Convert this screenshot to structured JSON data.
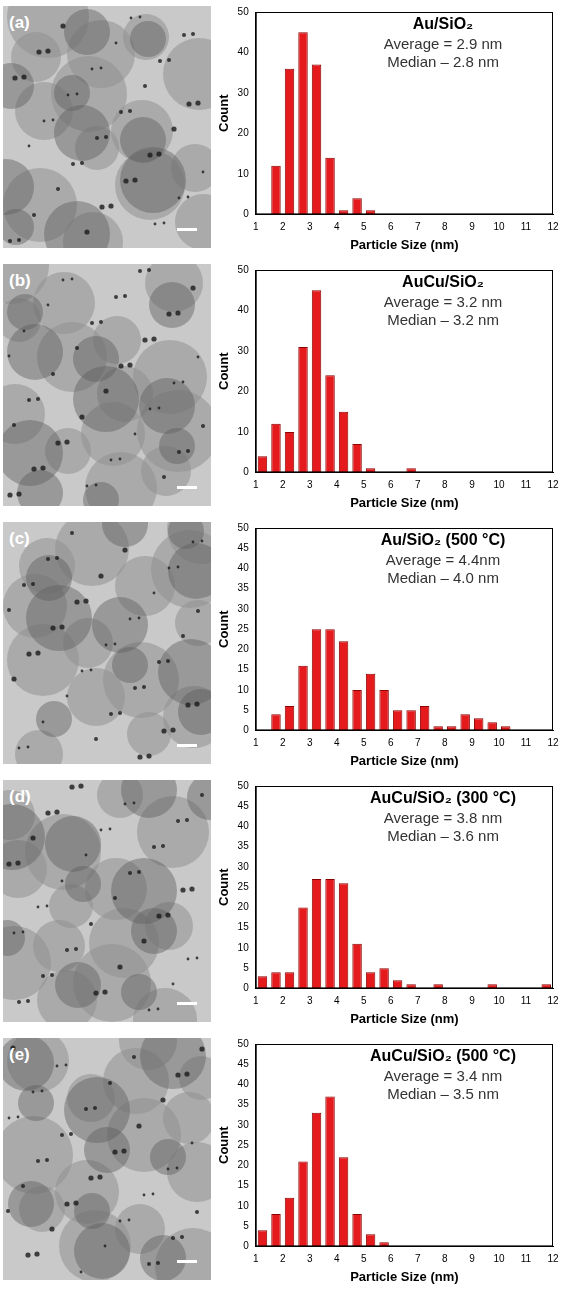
{
  "chart_data": [
    {
      "type": "histogram",
      "panel_label": "(a)",
      "title": "Au/SiO₂",
      "annotations": [
        "Average = 2.9 nm",
        "Median – 2.8 nm"
      ],
      "x_label": "Particle Size (nm)",
      "y_label": "Count",
      "bins": [
        1.5,
        2.0,
        2.5,
        3.0,
        3.5,
        4.0,
        4.5,
        5.0,
        5.5
      ],
      "values": [
        12,
        36,
        45,
        37,
        14,
        1,
        4,
        1
      ],
      "color": "#e41a1c",
      "xlim": [
        1,
        12
      ],
      "xticks": [
        1,
        2,
        3,
        4,
        5,
        6,
        7,
        8,
        9,
        10,
        11,
        12
      ],
      "ylim": [
        0,
        50
      ],
      "yticks": [
        0,
        10,
        20,
        30,
        40,
        50
      ],
      "grid": false
    },
    {
      "type": "histogram",
      "panel_label": "(b)",
      "title": "AuCu/SiO₂",
      "annotations": [
        "Average = 3.2 nm",
        "Median – 3.2 nm"
      ],
      "x_label": "Particle Size (nm)",
      "y_label": "Count",
      "bins": [
        1.0,
        1.5,
        2.0,
        2.5,
        3.0,
        3.5,
        4.0,
        4.5,
        5.0,
        5.5,
        6.0,
        6.5,
        7.0
      ],
      "values": [
        4,
        12,
        10,
        31,
        45,
        24,
        15,
        7,
        1,
        0,
        0,
        1
      ],
      "color": "#e41a1c",
      "xlim": [
        1,
        12
      ],
      "xticks": [
        1,
        2,
        3,
        4,
        5,
        6,
        7,
        8,
        9,
        10,
        11,
        12
      ],
      "ylim": [
        0,
        50
      ],
      "yticks": [
        0,
        10,
        20,
        30,
        40,
        50
      ],
      "grid": false
    },
    {
      "type": "histogram",
      "panel_label": "(c)",
      "title": "Au/SiO₂ (500 °C)",
      "annotations": [
        "Average = 4.4nm",
        "Median – 4.0 nm"
      ],
      "x_label": "Particle Size (nm)",
      "y_label": "Count",
      "bins": [
        1.5,
        2.0,
        2.5,
        3.0,
        3.5,
        4.0,
        4.5,
        5.0,
        5.5,
        6.0,
        6.5,
        7.0,
        7.5,
        8.0,
        8.5,
        9.0,
        9.5,
        10.0,
        10.5
      ],
      "values": [
        4,
        6,
        16,
        25,
        25,
        22,
        10,
        14,
        10,
        5,
        5,
        6,
        1,
        1,
        4,
        3,
        2,
        1
      ],
      "color": "#e41a1c",
      "xlim": [
        1,
        12
      ],
      "xticks": [
        1,
        2,
        3,
        4,
        5,
        6,
        7,
        8,
        9,
        10,
        11,
        12
      ],
      "ylim": [
        0,
        50
      ],
      "yticks": [
        0,
        5,
        10,
        15,
        20,
        25,
        30,
        35,
        40,
        45,
        50
      ],
      "grid": false
    },
    {
      "type": "histogram",
      "panel_label": "(d)",
      "title": "AuCu/SiO₂ (300 °C)",
      "annotations": [
        "Average = 3.8 nm",
        "Median – 3.6 nm"
      ],
      "x_label": "Particle Size (nm)",
      "y_label": "Count",
      "bins": [
        1.0,
        1.5,
        2.0,
        2.5,
        3.0,
        3.5,
        4.0,
        4.5,
        5.0,
        5.5,
        6.0,
        6.5,
        7.0,
        7.5,
        8.0,
        8.5,
        9.0,
        9.5,
        10.0,
        10.5,
        11.0,
        11.5,
        12.0
      ],
      "values": [
        3,
        4,
        4,
        20,
        27,
        27,
        26,
        11,
        4,
        5,
        2,
        1,
        0,
        1,
        0,
        0,
        0,
        1,
        0,
        0,
        0,
        1
      ],
      "color": "#e41a1c",
      "xlim": [
        1,
        12
      ],
      "xticks": [
        1,
        2,
        3,
        4,
        5,
        6,
        7,
        8,
        9,
        10,
        11,
        12
      ],
      "ylim": [
        0,
        50
      ],
      "yticks": [
        0,
        5,
        10,
        15,
        20,
        25,
        30,
        35,
        40,
        45,
        50
      ],
      "grid": false
    },
    {
      "type": "histogram",
      "panel_label": "(e)",
      "title": "AuCu/SiO₂ (500 °C)",
      "annotations": [
        "Average = 3.4 nm",
        "Median – 3.5 nm"
      ],
      "x_label": "Particle Size (nm)",
      "y_label": "Count",
      "bins": [
        1.0,
        1.5,
        2.0,
        2.5,
        3.0,
        3.5,
        4.0,
        4.5,
        5.0,
        5.5,
        6.0
      ],
      "values": [
        4,
        8,
        12,
        21,
        33,
        37,
        22,
        8,
        3,
        1
      ],
      "color": "#e41a1c",
      "xlim": [
        1,
        12
      ],
      "xticks": [
        1,
        2,
        3,
        4,
        5,
        6,
        7,
        8,
        9,
        10,
        11,
        12
      ],
      "ylim": [
        0,
        50
      ],
      "yticks": [
        0,
        5,
        10,
        15,
        20,
        25,
        30,
        35,
        40,
        45,
        50
      ],
      "grid": false
    }
  ]
}
